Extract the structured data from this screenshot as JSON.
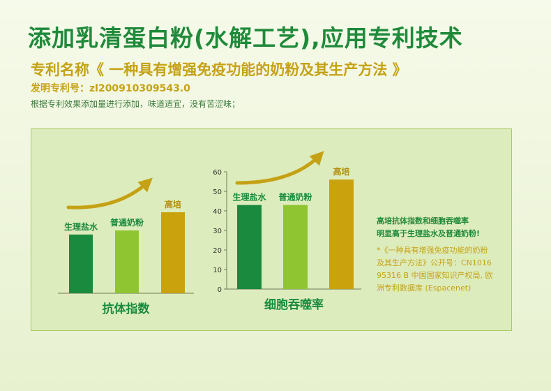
{
  "header": {
    "title": "添加乳清蛋白粉(水解工艺),应用专利技术",
    "patent_name": "专利名称《 一种具有增强免疫功能的奶粉及其生产方法 》",
    "patent_number": "发明专利号：zl200910309543.0",
    "note": "根据专利效果添加量进行添加，味道适宜，没有苦涩味；"
  },
  "side_text": {
    "highlight": [
      "高培抗体指数和细胞吞噬率",
      "明显高于生理盐水及普通奶粉!"
    ],
    "citation": [
      "*《一种具有增强免疫功能的奶粉",
      "及其生产方法》公开号：CN1016",
      "95316 B  中国国家知识产权局, 欧",
      "洲专利数据库 (Espacenet)"
    ]
  },
  "colors": {
    "green_dark": "#1a8a3e",
    "green_light": "#8fc531",
    "gold": "#c9a20e",
    "arrow": "#c5a215"
  },
  "chart_data": [
    {
      "type": "bar",
      "title": "",
      "xlabel": "抗体指数",
      "ylabel": "",
      "categories": [
        "生理盐水",
        "普通奶粉",
        "高培"
      ],
      "values": [
        29,
        31,
        40
      ],
      "ylim": [
        0,
        60
      ],
      "axis_visible": false,
      "bar_colors": [
        "#1a8a3e",
        "#8fc531",
        "#c9a20e"
      ]
    },
    {
      "type": "bar",
      "title": "",
      "xlabel": "细胞吞噬率",
      "ylabel": "",
      "categories": [
        "生理盐水",
        "普通奶粉",
        "高培"
      ],
      "values": [
        43,
        43,
        56
      ],
      "ylim": [
        0,
        60
      ],
      "yticks": [
        0,
        10,
        20,
        30,
        40,
        50,
        60
      ],
      "axis_visible": true,
      "bar_colors": [
        "#1a8a3e",
        "#8fc531",
        "#c9a20e"
      ]
    }
  ]
}
